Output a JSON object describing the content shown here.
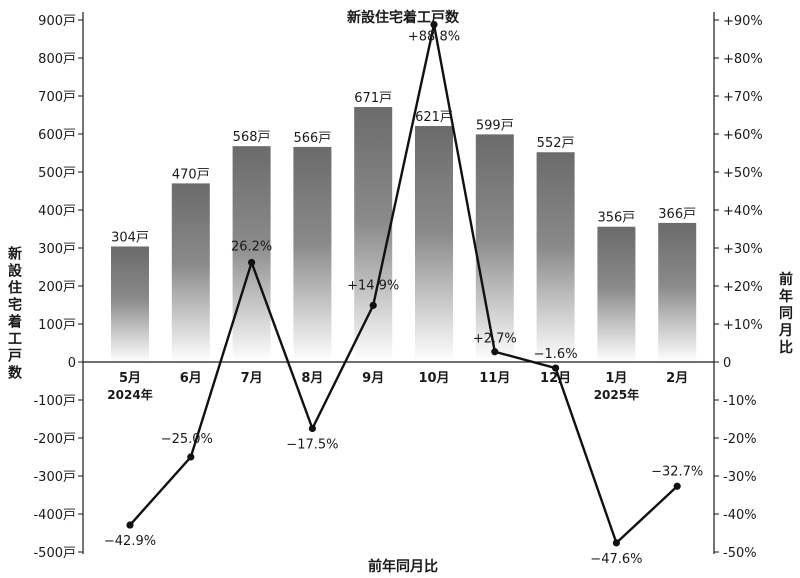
{
  "chart_data": {
    "type": "bar+line",
    "title": "新設住宅着工戸数",
    "categories": [
      "5月",
      "6月",
      "7月",
      "8月",
      "9月",
      "10月",
      "11月",
      "12月",
      "1月",
      "2月"
    ],
    "year_labels": [
      {
        "index": 0,
        "label": "2024年"
      },
      {
        "index": 8,
        "label": "2025年"
      }
    ],
    "series": [
      {
        "name": "新設住宅着工戸数",
        "kind": "bar",
        "axis": "left",
        "values": [
          304,
          470,
          568,
          566,
          671,
          621,
          599,
          552,
          356,
          366
        ],
        "labels": [
          "304戸",
          "470戸",
          "568戸",
          "566戸",
          "671戸",
          "621戸",
          "599戸",
          "552戸",
          "356戸",
          "366戸"
        ]
      },
      {
        "name": "前年同月比",
        "kind": "line",
        "axis": "right",
        "values": [
          -42.9,
          -25.0,
          26.2,
          -17.5,
          14.9,
          88.8,
          2.7,
          -1.6,
          -47.6,
          -32.7
        ],
        "labels": [
          "−42.9%",
          "−25.0%",
          "26.2%",
          "−17.5%",
          "+14.9%",
          "+88.8%",
          "+2.7%",
          "−1.6%",
          "−47.6%",
          "−32.7%"
        ]
      }
    ],
    "y_left": {
      "label": "新設住宅着工戸数",
      "ylim": [
        -500,
        900
      ],
      "ticks": [
        900,
        800,
        700,
        600,
        500,
        400,
        300,
        200,
        100,
        0,
        -100,
        -200,
        -300,
        -400,
        -500
      ],
      "tick_labels": [
        "900戸",
        "800戸",
        "700戸",
        "600戸",
        "500戸",
        "400戸",
        "300戸",
        "200戸",
        "100戸",
        "0",
        "-100戸",
        "-200戸",
        "-300戸",
        "-400戸",
        "-500戸"
      ]
    },
    "y_right": {
      "label": "前年同月比",
      "ylim": [
        -50,
        90
      ],
      "ticks": [
        90,
        80,
        70,
        60,
        50,
        40,
        30,
        20,
        10,
        0,
        -10,
        -20,
        -30,
        -40,
        -50
      ],
      "tick_labels": [
        "+90%",
        "+80%",
        "+70%",
        "+60%",
        "+50%",
        "+40%",
        "+30%",
        "+20%",
        "+10%",
        "0",
        "-10%",
        "-20%",
        "-30%",
        "-40%",
        "-50%"
      ]
    },
    "x_bottom_label": "前年同月比",
    "grid": false,
    "colors": {
      "bar_top": "#6b6b6b",
      "bar_bottom": "#ffffff",
      "line": "#111111"
    }
  }
}
